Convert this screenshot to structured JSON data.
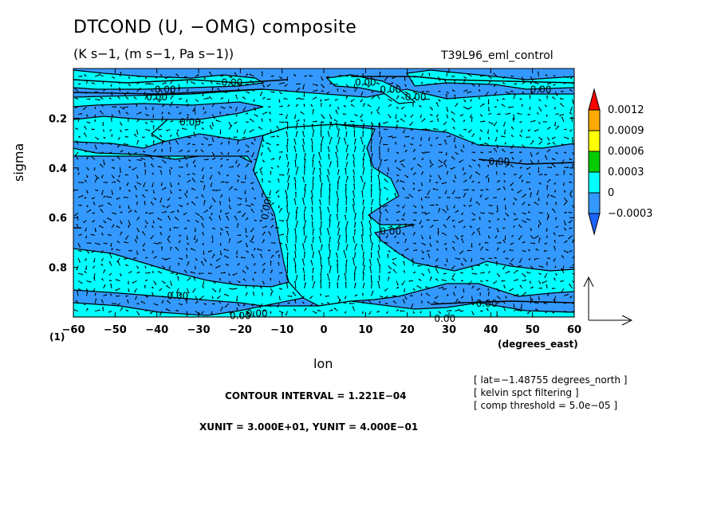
{
  "chart_data": {
    "type": "contour+vector",
    "title": "DTCOND (U, −OMG) composite",
    "subtitle": "(K s−1, (m s−1, Pa s−1))",
    "run_label": "T39L96_eml_control",
    "xlabel": "lon",
    "xlabel_units": "(degrees_east)",
    "ylabel": "sigma",
    "x_ticks": [
      "−60",
      "−50",
      "−40",
      "−30",
      "−20",
      "−10",
      "0",
      "10",
      "20",
      "30",
      "40",
      "50",
      "60"
    ],
    "y_ticks": [
      "0.2",
      "0.4",
      "0.6",
      "0.8"
    ],
    "y_tick_values": [
      0.2,
      0.4,
      0.6,
      0.8
    ],
    "xlim": [
      -60,
      60
    ],
    "ylim": [
      0.0,
      1.0
    ],
    "index_label": "(1)",
    "colorbar": {
      "labels": [
        "0.0012",
        "0.0009",
        "0.0006",
        "0.0003",
        "0",
        "−0.0003"
      ],
      "colors": [
        "#ff0000",
        "#ffaa00",
        "#ffff00",
        "#00cc00",
        "#00ffff",
        "#3399ff",
        "#1e64ff"
      ]
    },
    "contour_labels": [
      {
        "text": "0.00",
        "x": -38,
        "y": 0.06
      },
      {
        "text": "0.00",
        "x": -22,
        "y": 0.03
      },
      {
        "text": "0.00",
        "x": -40,
        "y": 0.09
      },
      {
        "text": "0.00",
        "x": -32,
        "y": 0.19
      },
      {
        "text": "0.00",
        "x": 10,
        "y": 0.03
      },
      {
        "text": "0.00",
        "x": 16,
        "y": 0.06
      },
      {
        "text": "0.00",
        "x": 22,
        "y": 0.09
      },
      {
        "text": "0.00",
        "x": 52,
        "y": 0.06
      },
      {
        "text": "0.00",
        "x": 42,
        "y": 0.35
      },
      {
        "text": "0.00",
        "x": -13,
        "y": 0.53
      },
      {
        "text": "0.00",
        "x": 16,
        "y": 0.63
      },
      {
        "text": "0.00",
        "x": -35,
        "y": 0.89
      },
      {
        "text": "0.00",
        "x": 39,
        "y": 0.92
      },
      {
        "text": "0.00",
        "x": -20,
        "y": 0.97
      },
      {
        "text": "0.00",
        "x": -16,
        "y": 0.96
      },
      {
        "text": "0.00",
        "x": 29,
        "y": 0.98
      }
    ],
    "fill_regions": {
      "positive": "#00ffff",
      "negative": "#3399ff"
    }
  },
  "notes": [
    "[ lat=−1.48755 degrees_north ]",
    "[ kelvin spct filtering ]",
    "[ comp threshold = 5.0e−05 ]"
  ],
  "contour_interval": "CONTOUR INTERVAL = 1.221E−04",
  "vector_units": "XUNIT = 3.000E+01, YUNIT = 4.000E−01"
}
